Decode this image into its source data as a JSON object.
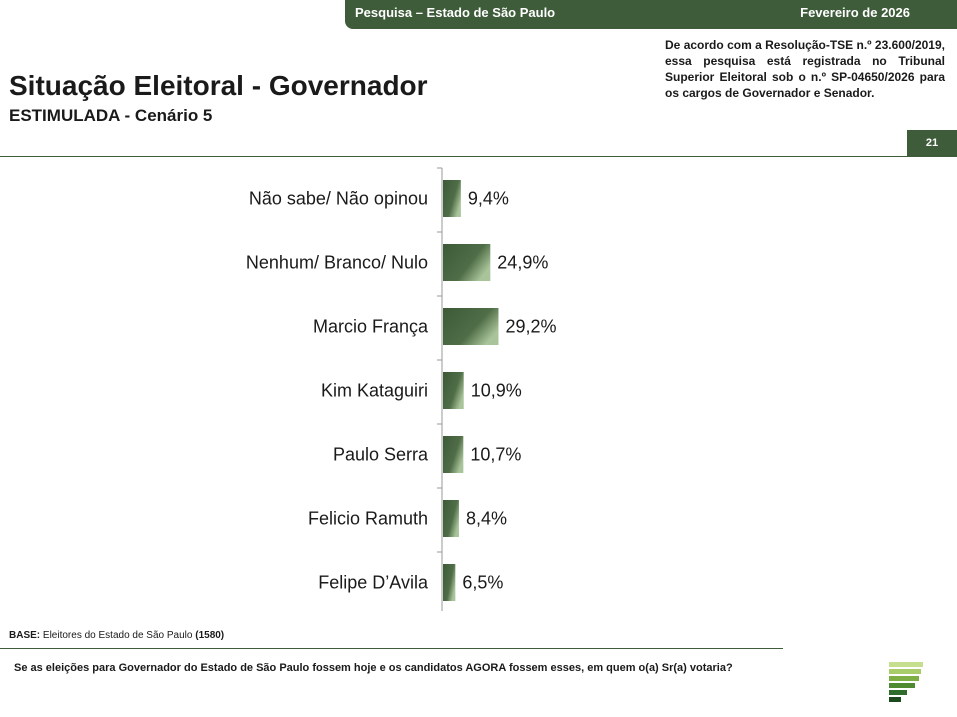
{
  "header": {
    "survey_label": "Pesquisa – Estado de São Paulo",
    "date": "Fevereiro de 2026"
  },
  "notice": "De acordo com a Resolução-TSE n.º 23.600/2019, essa pesquisa está registrada no Tribunal Superior Eleitoral sob o n.º SP-04650/2026 para os cargos de Governador e Senador.",
  "page_number": "21",
  "title": "Situação Eleitoral - Governador",
  "subtitle": "ESTIMULADA - Cenário 5",
  "base": {
    "label": "BASE:",
    "text": "Eleitores do Estado de São Paulo",
    "count": "(1580)"
  },
  "question": "Se as eleições para Governador do Estado de São Paulo fossem hoje e os candidatos AGORA fossem esses, em quem o(a) Sr(a) votaria?",
  "colors": {
    "brand": "#3e5c3a",
    "bar_dark": "#3d5a38",
    "bar_light": "#a9c49a"
  },
  "chart_data": {
    "type": "bar",
    "orientation": "horizontal",
    "title": "",
    "xlabel": "",
    "ylabel": "",
    "categories": [
      "Não sabe/ Não opinou",
      "Nenhum/ Branco/ Nulo",
      "Marcio França",
      "Kim Kataguiri",
      "Paulo Serra",
      "Felicio Ramuth",
      "Felipe D’Avila"
    ],
    "values": [
      9.4,
      24.9,
      29.2,
      10.9,
      10.7,
      8.4,
      6.5
    ],
    "labels": [
      "9,4%",
      "24,9%",
      "29,2%",
      "10,9%",
      "10,7%",
      "8,4%",
      "6,5%"
    ],
    "unit": "%",
    "xlim": [
      0,
      100
    ]
  }
}
